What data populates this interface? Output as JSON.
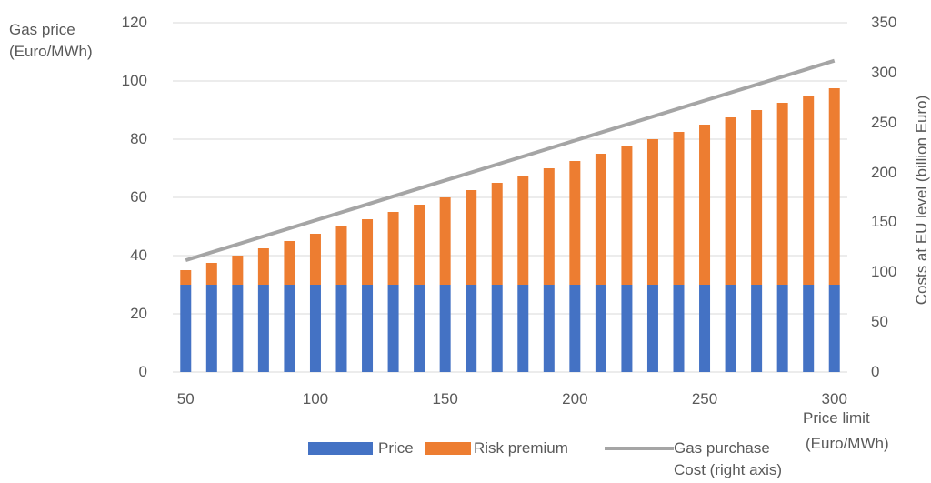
{
  "chart_data": {
    "type": "bar",
    "stacked": true,
    "x": [
      50,
      60,
      70,
      80,
      90,
      100,
      110,
      120,
      130,
      140,
      150,
      160,
      170,
      180,
      190,
      200,
      210,
      220,
      230,
      240,
      250,
      260,
      270,
      280,
      290,
      300
    ],
    "x_ticks": [
      "50",
      "100",
      "150",
      "200",
      "250",
      "300"
    ],
    "series": [
      {
        "name": "Price",
        "axis": "left",
        "kind": "bar",
        "color": "#4472C4",
        "values": [
          30,
          30,
          30,
          30,
          30,
          30,
          30,
          30,
          30,
          30,
          30,
          30,
          30,
          30,
          30,
          30,
          30,
          30,
          30,
          30,
          30,
          30,
          30,
          30,
          30,
          30
        ]
      },
      {
        "name": "Risk premium",
        "axis": "left",
        "kind": "bar",
        "color": "#ED7D31",
        "values": [
          5,
          7.5,
          10,
          12.5,
          15,
          17.5,
          20,
          22.5,
          25,
          27.5,
          30,
          32.5,
          35,
          37.5,
          40,
          42.5,
          45,
          47.5,
          50,
          52.5,
          55,
          57.5,
          60,
          62.5,
          65,
          67.5
        ]
      },
      {
        "name": "Gas purchase Cost (right axis)",
        "axis": "right",
        "kind": "line",
        "color": "#A5A5A5",
        "x": [
          50,
          300
        ],
        "values": [
          112,
          312
        ]
      }
    ],
    "ylabel_left": [
      "Gas price",
      "(Euro/MWh)"
    ],
    "ylabel_right": "Costs at EU level (billion Euro)",
    "xlabel": [
      "Price limit",
      "(Euro/MWh)"
    ],
    "y_left": {
      "lim": [
        0,
        120
      ],
      "ticks": [
        "0",
        "20",
        "40",
        "60",
        "80",
        "100",
        "120"
      ]
    },
    "y_right": {
      "lim": [
        0,
        350
      ],
      "ticks": [
        "0",
        "50",
        "100",
        "150",
        "200",
        "250",
        "300",
        "350"
      ]
    },
    "grid": true,
    "legend": {
      "placement": "bottom",
      "items": [
        "Price",
        "Risk premium"
      ],
      "line_item": [
        "Gas purchase",
        "Cost (right axis)"
      ]
    }
  }
}
